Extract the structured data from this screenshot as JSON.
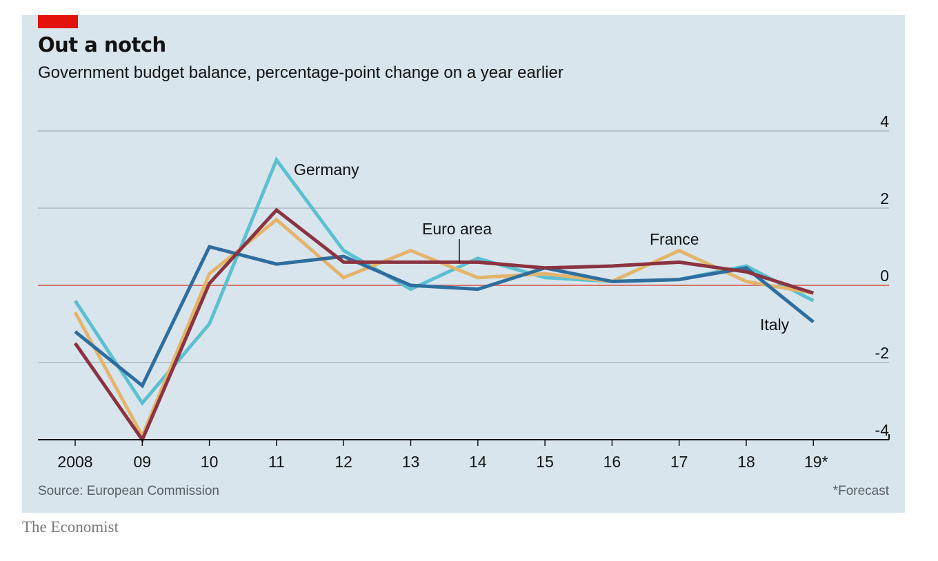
{
  "header": {
    "title": "Out a notch",
    "subtitle": "Government budget balance, percentage-point change on a year earlier"
  },
  "footer": {
    "source": "Source: European Commission",
    "footnote": "*Forecast",
    "brand": "The Economist"
  },
  "colors": {
    "background": "#d9e5ed",
    "accent_red": "#e3120b",
    "zero_line": "#d9726c",
    "gridline": "#a9b6bf",
    "axis": "#121212"
  },
  "chart_data": {
    "type": "line",
    "title": "Out a notch",
    "subtitle": "Government budget balance, percentage-point change on a year earlier",
    "xlabel": "",
    "ylabel": "",
    "x": [
      "2008",
      "09",
      "10",
      "11",
      "12",
      "13",
      "14",
      "15",
      "16",
      "17",
      "18",
      "19*"
    ],
    "ylim": [
      -4,
      4
    ],
    "yticks": [
      4,
      2,
      0,
      -2,
      -4
    ],
    "ytick_labels": [
      "4",
      "2",
      "0",
      "-2",
      "-4"
    ],
    "y_axis_side": "right",
    "grid": true,
    "legend": "inline labels",
    "series": [
      {
        "name": "Germany",
        "color": "#5bc0d2",
        "values": [
          -0.4,
          -3.05,
          -1.0,
          3.25,
          0.9,
          -0.1,
          0.7,
          0.2,
          0.1,
          0.15,
          0.5,
          -0.4
        ]
      },
      {
        "name": "France",
        "color": "#e3b56b",
        "values": [
          -0.7,
          -3.9,
          0.3,
          1.7,
          0.2,
          0.9,
          0.2,
          0.3,
          0.1,
          0.9,
          0.1,
          -0.2
        ]
      },
      {
        "name": "Italy",
        "color": "#2e6e9e",
        "values": [
          -1.2,
          -2.6,
          1.0,
          0.55,
          0.75,
          0.0,
          -0.1,
          0.45,
          0.1,
          0.15,
          0.45,
          -0.95
        ]
      },
      {
        "name": "Euro area",
        "color": "#8b3340",
        "values": [
          -1.5,
          -4.0,
          0.05,
          1.95,
          0.6,
          0.6,
          0.6,
          0.45,
          0.5,
          0.6,
          0.35,
          -0.2
        ]
      }
    ],
    "annotations": [
      {
        "text": "Germany",
        "series": "Germany"
      },
      {
        "text": "Euro area",
        "series": "Euro area",
        "pointer": true
      },
      {
        "text": "France",
        "series": "France"
      },
      {
        "text": "Italy",
        "series": "Italy"
      }
    ],
    "notes": [
      "2019 values are forecasts"
    ]
  }
}
